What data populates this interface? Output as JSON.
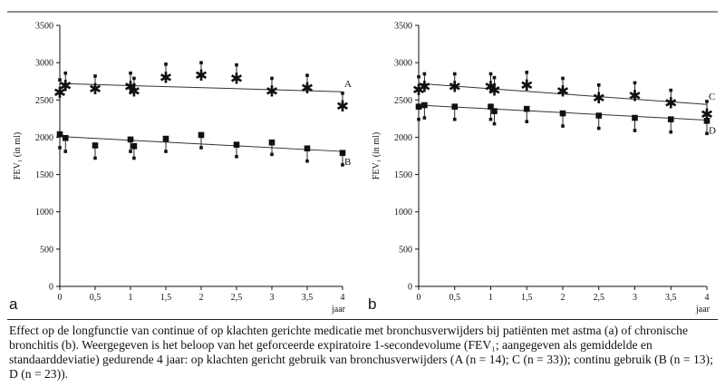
{
  "chart_data": [
    {
      "panel_label": "a",
      "type": "scatter",
      "ylabel": "FEV₁ (in ml)",
      "xunit": "jaar",
      "xlim": [
        0,
        4
      ],
      "ylim": [
        0,
        3500
      ],
      "xticks": [
        "0",
        "0,5",
        "1",
        "1,5",
        "2",
        "2,5",
        "3",
        "3,5",
        "4"
      ],
      "yticks": [
        "0",
        "500",
        "1000",
        "1500",
        "2000",
        "2500",
        "3000",
        "3500"
      ],
      "series": [
        {
          "name": "A",
          "marker": "asterisk",
          "x": [
            0.0,
            0.08,
            0.5,
            1.0,
            1.05,
            1.5,
            2.0,
            2.5,
            3.0,
            3.5,
            4.0
          ],
          "y": [
            2600,
            2690,
            2650,
            2680,
            2620,
            2800,
            2830,
            2790,
            2620,
            2660,
            2420
          ],
          "sd": [
            170,
            170,
            170,
            180,
            170,
            180,
            170,
            180,
            170,
            170,
            170
          ],
          "trend": [
            2720,
            2610
          ]
        },
        {
          "name": "B",
          "marker": "square",
          "x": [
            0.0,
            0.08,
            0.5,
            1.0,
            1.05,
            1.5,
            2.0,
            2.5,
            3.0,
            3.5,
            4.0
          ],
          "y": [
            2040,
            1990,
            1890,
            1970,
            1880,
            1980,
            2030,
            1900,
            1930,
            1850,
            1790
          ],
          "sd": [
            180,
            180,
            170,
            160,
            160,
            170,
            170,
            160,
            160,
            170,
            160
          ],
          "trend": [
            2010,
            1810
          ]
        }
      ]
    },
    {
      "panel_label": "b",
      "type": "scatter",
      "ylabel": "FEV₁ (in ml)",
      "xunit": "jaar",
      "xlim": [
        0,
        4
      ],
      "ylim": [
        0,
        3500
      ],
      "xticks": [
        "0",
        "0,5",
        "1",
        "1,5",
        "2",
        "2,5",
        "3",
        "3,5",
        "4"
      ],
      "yticks": [
        "0",
        "500",
        "1000",
        "1500",
        "2000",
        "2500",
        "3000",
        "3500"
      ],
      "series": [
        {
          "name": "C",
          "marker": "asterisk",
          "x": [
            0.0,
            0.08,
            0.5,
            1.0,
            1.05,
            1.5,
            2.0,
            2.5,
            3.0,
            3.5,
            4.0
          ],
          "y": [
            2640,
            2680,
            2680,
            2680,
            2630,
            2700,
            2620,
            2530,
            2560,
            2460,
            2310
          ],
          "sd": [
            170,
            170,
            170,
            170,
            170,
            170,
            170,
            170,
            170,
            170,
            170
          ],
          "trend": [
            2720,
            2440
          ]
        },
        {
          "name": "D",
          "marker": "square",
          "x": [
            0.0,
            0.08,
            0.5,
            1.0,
            1.05,
            1.5,
            2.0,
            2.5,
            3.0,
            3.5,
            4.0
          ],
          "y": [
            2410,
            2430,
            2410,
            2410,
            2350,
            2380,
            2320,
            2290,
            2260,
            2240,
            2220
          ],
          "sd": [
            170,
            170,
            170,
            170,
            170,
            170,
            170,
            170,
            170,
            170,
            170
          ],
          "trend": [
            2430,
            2230
          ]
        }
      ]
    }
  ],
  "caption": "Effect op de longfunctie van continue of op klachten gerichte medicatie met bronchusverwijders bij patiënten met astma (a) of chronische bronchitis (b). Weergegeven is het beloop van het geforceerde expiratoire 1-secondevolume (FEV₁; aangegeven als gemiddelde en standaarddeviatie) gedurende 4 jaar: op klachten gericht gebruik van bronchusverwijders (A (n = 14); C (n = 33)); continu gebruik (B (n = 13); D (n = 23))."
}
